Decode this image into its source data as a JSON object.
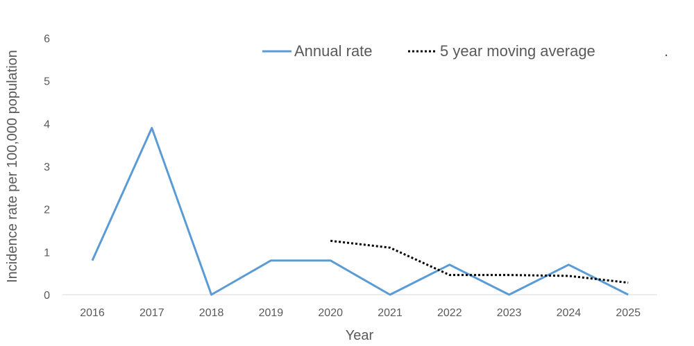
{
  "chart_data": {
    "type": "line",
    "xlabel": "Year",
    "ylabel": "Incidence rate per 100,000 population",
    "categories": [
      "2016",
      "2017",
      "2018",
      "2019",
      "2020",
      "2021",
      "2022",
      "2023",
      "2024",
      "2025"
    ],
    "ylim": [
      0,
      6
    ],
    "yticks": [
      "0",
      "1",
      "2",
      "3",
      "4",
      "5",
      "6"
    ],
    "grid": false,
    "legend_position": "top-right",
    "series": [
      {
        "name": "Annual rate",
        "color": "#5b9bd5",
        "style": "solid",
        "values": [
          0.8,
          3.9,
          0.0,
          0.8,
          0.8,
          0.0,
          0.7,
          0.0,
          0.7,
          0.0
        ]
      },
      {
        "name": "5 year moving average",
        "color": "#000000",
        "style": "dotted",
        "values": [
          null,
          null,
          null,
          null,
          1.26,
          1.1,
          0.46,
          0.46,
          0.44,
          0.28
        ]
      }
    ],
    "legend_trailing": "."
  }
}
